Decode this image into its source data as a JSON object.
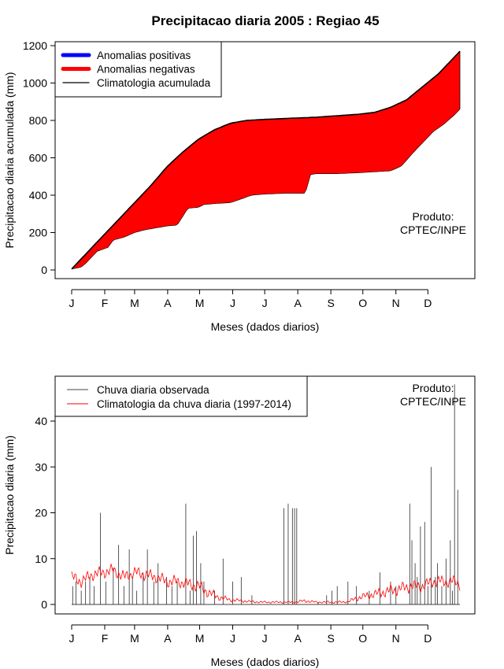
{
  "title": "Precipitacao diaria 2005 : Regiao 45",
  "colors": {
    "positive": "#0000ff",
    "negative": "#ff0000",
    "climatology": "#000000",
    "observed": "#444444",
    "clim_daily": "#ff0000"
  },
  "chart_data": [
    {
      "type": "area",
      "name": "accumulated",
      "ylabel": "Precipitacao diaria acumulada (mm)",
      "xlabel": "Meses (dados diarios)",
      "ylim": [
        0,
        1200
      ],
      "yticks": [
        "0",
        "200",
        "400",
        "600",
        "800",
        "1000",
        "1200"
      ],
      "xticks": [
        "J",
        "F",
        "M",
        "A",
        "M",
        "J",
        "J",
        "A",
        "S",
        "O",
        "N",
        "D"
      ],
      "legend": [
        "Anomalias positivas",
        "Anomalias negativas",
        "Climatologia acumulada"
      ],
      "legend_position": "top-left",
      "annotation": "Produto:\nCPTEC/INPE",
      "annotation_lines": [
        "Produto:",
        "CPTEC/INPE"
      ],
      "climatology_cumulative": {
        "day": [
          1,
          20,
          45,
          60,
          75,
          90,
          105,
          120,
          135,
          150,
          165,
          180,
          200,
          230,
          250,
          270,
          285,
          300,
          315,
          330,
          345,
          365
        ],
        "mm": [
          5,
          120,
          270,
          360,
          450,
          550,
          630,
          700,
          750,
          785,
          800,
          805,
          810,
          817,
          825,
          833,
          843,
          870,
          910,
          980,
          1050,
          1170
        ]
      },
      "observed_cumulative": {
        "day": [
          1,
          10,
          15,
          20,
          25,
          35,
          40,
          50,
          60,
          70,
          80,
          90,
          100,
          110,
          120,
          125,
          135,
          150,
          160,
          170,
          180,
          200,
          220,
          225,
          230,
          250,
          270,
          285,
          300,
          310,
          320,
          330,
          340,
          350,
          360,
          365
        ],
        "mm": [
          5,
          15,
          40,
          70,
          100,
          120,
          160,
          175,
          200,
          215,
          225,
          235,
          240,
          330,
          335,
          350,
          355,
          360,
          380,
          400,
          405,
          410,
          410,
          510,
          515,
          515,
          520,
          525,
          530,
          555,
          620,
          680,
          740,
          780,
          830,
          860
        ]
      }
    },
    {
      "type": "line",
      "name": "daily",
      "ylabel": "Precipitacao diaria (mm)",
      "xlabel": "Meses (dados diarios)",
      "ylim": [
        0,
        48
      ],
      "yticks": [
        "0",
        "10",
        "20",
        "30",
        "40"
      ],
      "xticks": [
        "J",
        "F",
        "M",
        "A",
        "M",
        "J",
        "J",
        "A",
        "S",
        "O",
        "N",
        "D"
      ],
      "legend": [
        "Chuva diaria observada",
        "Climatologia da chuva diaria (1997-2014)"
      ],
      "legend_position": "top-left",
      "annotation": "Produto:\nCPTEC/INPE",
      "annotation_lines": [
        "Produto:",
        "CPTEC/INPE"
      ],
      "observed_spikes": {
        "day": [
          2,
          5,
          10,
          14,
          18,
          22,
          28,
          33,
          40,
          45,
          50,
          55,
          58,
          62,
          68,
          72,
          78,
          82,
          90,
          95,
          100,
          108,
          112,
          115,
          118,
          122,
          125,
          135,
          143,
          152,
          160,
          170,
          200,
          204,
          208,
          210,
          212,
          232,
          240,
          245,
          250,
          260,
          268,
          280,
          290,
          300,
          305,
          318,
          320,
          323,
          325,
          328,
          332,
          335,
          338,
          342,
          344,
          348,
          352,
          356,
          358,
          360,
          363
        ],
        "mm": [
          4,
          5,
          3,
          5,
          6,
          4,
          20,
          5,
          8,
          13,
          4,
          12,
          6,
          3,
          7,
          12,
          5,
          9,
          6,
          4,
          5,
          22,
          3,
          15,
          16,
          9,
          5,
          3,
          10,
          5,
          6,
          2,
          21,
          22,
          21,
          21,
          21,
          0.5,
          2,
          3,
          4,
          5,
          4,
          3,
          7,
          5,
          4,
          22,
          14,
          9,
          6,
          17,
          18,
          4,
          30,
          6,
          9,
          4,
          10,
          14,
          3,
          48,
          25
        ]
      },
      "climatology_daily": {
        "day": [
          1,
          10,
          20,
          30,
          40,
          50,
          60,
          70,
          80,
          90,
          100,
          110,
          120,
          130,
          140,
          150,
          160,
          170,
          180,
          190,
          200,
          210,
          220,
          230,
          240,
          250,
          260,
          270,
          280,
          290,
          300,
          310,
          320,
          330,
          340,
          350,
          360,
          365
        ],
        "mm": [
          6,
          5,
          6.5,
          7,
          7.5,
          6,
          7,
          6.5,
          6,
          5,
          5,
          4.5,
          4,
          2.5,
          1.5,
          1,
          0.8,
          0.6,
          0.5,
          0.5,
          0.5,
          0.5,
          0.8,
          0.5,
          0.5,
          0.5,
          0.6,
          1.5,
          2,
          2.5,
          3,
          3.5,
          4,
          4,
          5,
          5,
          5,
          4.5
        ]
      }
    }
  ]
}
